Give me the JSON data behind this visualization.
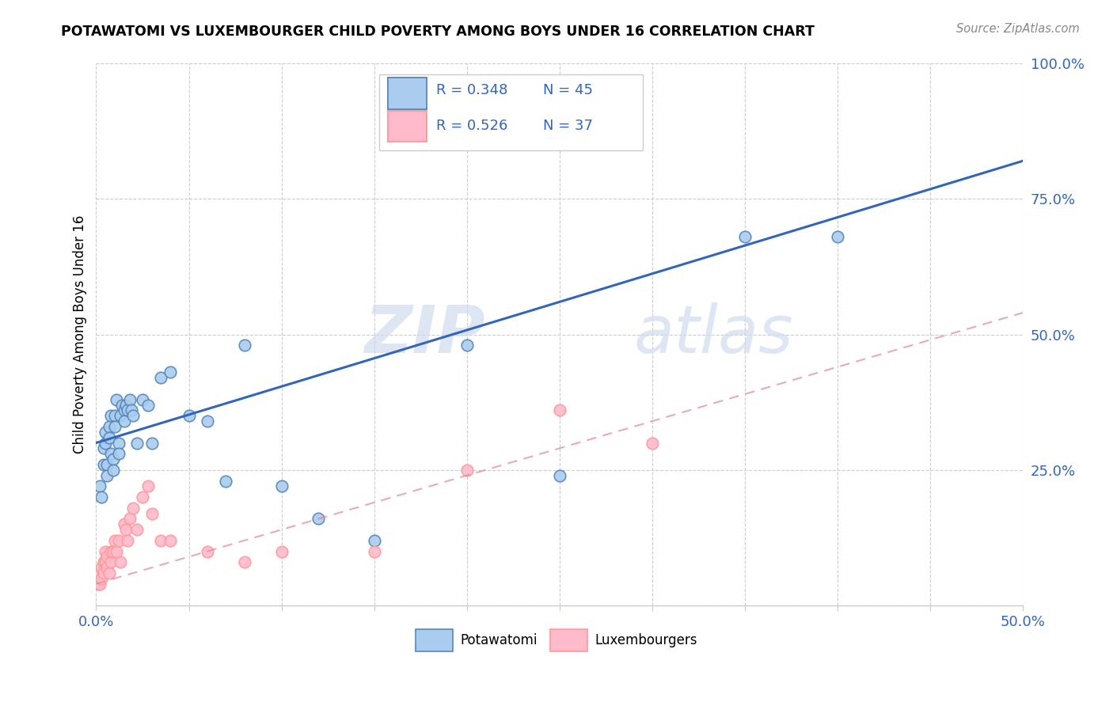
{
  "title": "POTAWATOMI VS LUXEMBOURGER CHILD POVERTY AMONG BOYS UNDER 16 CORRELATION CHART",
  "source": "Source: ZipAtlas.com",
  "ylabel": "Child Poverty Among Boys Under 16",
  "xlim": [
    0.0,
    0.5
  ],
  "ylim": [
    0.0,
    1.0
  ],
  "xtick_positions": [
    0.0,
    0.05,
    0.1,
    0.15,
    0.2,
    0.25,
    0.3,
    0.35,
    0.4,
    0.45,
    0.5
  ],
  "xtick_labels": [
    "0.0%",
    "",
    "",
    "",
    "",
    "",
    "",
    "",
    "",
    "",
    "50.0%"
  ],
  "ytick_positions": [
    0.0,
    0.25,
    0.5,
    0.75,
    1.0
  ],
  "ytick_labels": [
    "",
    "25.0%",
    "50.0%",
    "75.0%",
    "100.0%"
  ],
  "blue_face": "#AACCEE",
  "blue_edge": "#5588BB",
  "pink_face": "#FFBBCC",
  "pink_edge": "#FF9999",
  "blue_line_color": "#3366BB",
  "pink_line_color": "#DD8899",
  "watermark_zip": "ZIP",
  "watermark_atlas": "atlas",
  "pot_x": [
    0.002,
    0.003,
    0.004,
    0.004,
    0.005,
    0.005,
    0.006,
    0.006,
    0.007,
    0.007,
    0.008,
    0.008,
    0.009,
    0.009,
    0.01,
    0.01,
    0.011,
    0.012,
    0.012,
    0.013,
    0.014,
    0.015,
    0.015,
    0.016,
    0.017,
    0.018,
    0.019,
    0.02,
    0.022,
    0.025,
    0.028,
    0.03,
    0.035,
    0.04,
    0.05,
    0.06,
    0.07,
    0.08,
    0.1,
    0.12,
    0.15,
    0.2,
    0.25,
    0.35,
    0.4
  ],
  "pot_y": [
    0.22,
    0.2,
    0.29,
    0.26,
    0.32,
    0.3,
    0.26,
    0.24,
    0.33,
    0.31,
    0.35,
    0.28,
    0.27,
    0.25,
    0.35,
    0.33,
    0.38,
    0.3,
    0.28,
    0.35,
    0.37,
    0.36,
    0.34,
    0.37,
    0.36,
    0.38,
    0.36,
    0.35,
    0.3,
    0.38,
    0.37,
    0.3,
    0.42,
    0.43,
    0.35,
    0.34,
    0.23,
    0.48,
    0.22,
    0.16,
    0.12,
    0.48,
    0.24,
    0.68,
    0.68
  ],
  "lux_x": [
    0.001,
    0.002,
    0.002,
    0.003,
    0.003,
    0.004,
    0.004,
    0.005,
    0.005,
    0.006,
    0.006,
    0.007,
    0.008,
    0.008,
    0.009,
    0.01,
    0.011,
    0.012,
    0.013,
    0.015,
    0.016,
    0.017,
    0.018,
    0.02,
    0.022,
    0.025,
    0.028,
    0.03,
    0.035,
    0.04,
    0.06,
    0.08,
    0.1,
    0.15,
    0.2,
    0.25,
    0.3
  ],
  "lux_y": [
    0.04,
    0.04,
    0.06,
    0.05,
    0.07,
    0.06,
    0.08,
    0.08,
    0.1,
    0.07,
    0.09,
    0.06,
    0.08,
    0.1,
    0.1,
    0.12,
    0.1,
    0.12,
    0.08,
    0.15,
    0.14,
    0.12,
    0.16,
    0.18,
    0.14,
    0.2,
    0.22,
    0.17,
    0.12,
    0.12,
    0.1,
    0.08,
    0.1,
    0.1,
    0.25,
    0.36,
    0.3
  ],
  "blue_line_x0": 0.0,
  "blue_line_y0": 0.3,
  "blue_line_x1": 0.5,
  "blue_line_y1": 0.82,
  "pink_line_x0": 0.0,
  "pink_line_y0": 0.04,
  "pink_line_x1": 0.5,
  "pink_line_y1": 0.54
}
